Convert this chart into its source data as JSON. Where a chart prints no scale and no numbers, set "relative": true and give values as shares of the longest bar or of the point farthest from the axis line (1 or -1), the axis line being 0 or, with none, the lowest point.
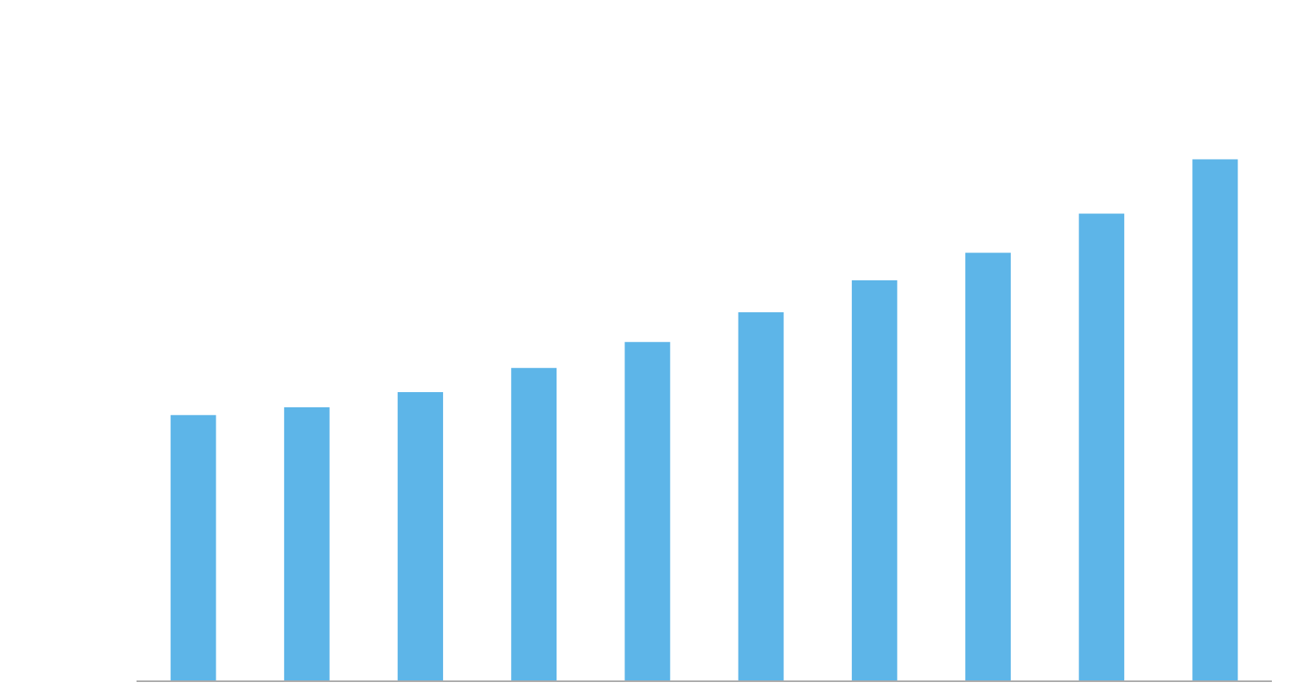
{
  "chart_data": {
    "type": "bar",
    "relative": true,
    "categories": [
      null,
      null,
      null,
      null,
      null,
      null,
      null,
      null,
      null,
      null
    ],
    "values": [
      0.51,
      0.525,
      0.554,
      0.6,
      0.65,
      0.707,
      0.768,
      0.821,
      0.896,
      1
    ],
    "color": "#5db5e8",
    "grid": false
  }
}
